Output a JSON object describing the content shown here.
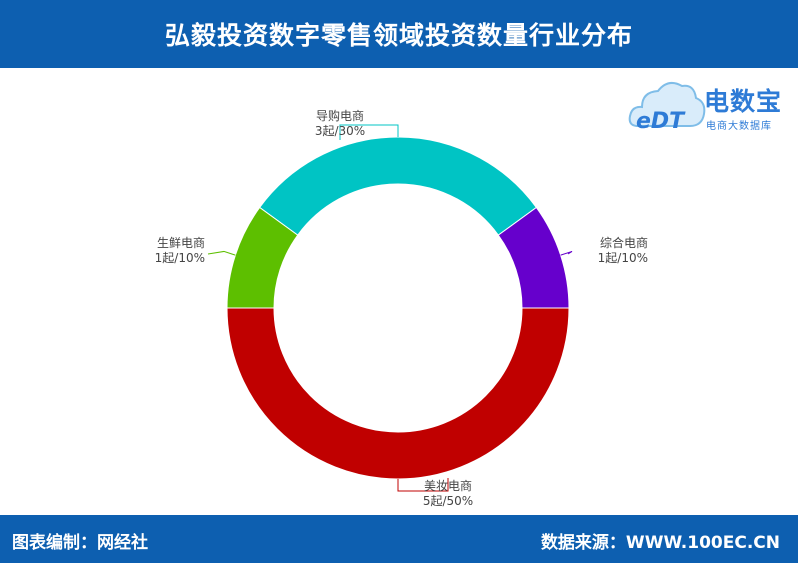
{
  "header": {
    "title": "弘毅投资数字零售领域投资数量行业分布"
  },
  "footer": {
    "left": "图表编制：网经社",
    "right": "数据来源：WWW.100EC.CN"
  },
  "logo": {
    "mark": "eDT",
    "main": "电数宝",
    "sub": "电商大数据库"
  },
  "colors": {
    "header_bg": "#0d5fb0"
  },
  "chart_data": {
    "type": "pie",
    "donut": true,
    "title": "",
    "unit": "起",
    "slices": [
      {
        "name": "导购电商",
        "value": 3,
        "percent": 30,
        "label": "3起/30%",
        "color": "#00c4c4"
      },
      {
        "name": "综合电商",
        "value": 1,
        "percent": 10,
        "label": "1起/10%",
        "color": "#6600cc"
      },
      {
        "name": "美妆电商",
        "value": 5,
        "percent": 50,
        "label": "5起/50%",
        "color": "#c00000"
      },
      {
        "name": "生鲜电商",
        "value": 1,
        "percent": 10,
        "label": "1起/10%",
        "color": "#5dbf00"
      }
    ]
  }
}
